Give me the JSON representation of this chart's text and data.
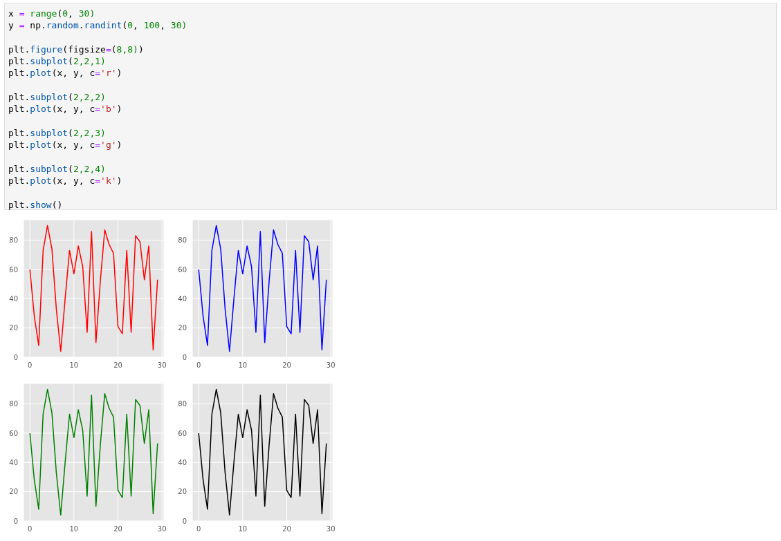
{
  "chart_data": [
    {
      "type": "other",
      "annotations": [
        "x = range(0, 30)\ny = np.random.randint(0, 100, 30)\n\nplt.figure(figsize=(8,8))\nplt.subplot(2,2,1)\nplt.plot(x, y, c='r')\n\nplt.subplot(2,2,2)\nplt.plot(x, y, c='b')\n\nplt.subplot(2,2,3)\nplt.plot(x, y, c='g')\n\nplt.subplot(2,2,4)\nplt.plot(x, y, c='k')\n\nplt.show()"
      ]
    },
    {
      "type": "line",
      "x": [
        0,
        1,
        2,
        3,
        4,
        5,
        6,
        7,
        8,
        9,
        10,
        11,
        12,
        13,
        14,
        15,
        16,
        17,
        18,
        19,
        20,
        21,
        22,
        23,
        24,
        25,
        26,
        27,
        28,
        29
      ],
      "series": [
        {
          "color": "#ff0000",
          "values": [
            60,
            28,
            8,
            73,
            90,
            74,
            33,
            4,
            40,
            73,
            57,
            76,
            62,
            17,
            86,
            10,
            52,
            87,
            77,
            71,
            21,
            16,
            73,
            17,
            83,
            79,
            53,
            76,
            5,
            53
          ]
        }
      ],
      "xlim": [
        -1.45,
        30.45
      ],
      "ylim": [
        0,
        94
      ],
      "xticks": [
        0,
        10,
        20,
        30
      ],
      "yticks": [
        0,
        20,
        40,
        60,
        80
      ],
      "grid": true
    },
    {
      "type": "line",
      "x": [
        0,
        1,
        2,
        3,
        4,
        5,
        6,
        7,
        8,
        9,
        10,
        11,
        12,
        13,
        14,
        15,
        16,
        17,
        18,
        19,
        20,
        21,
        22,
        23,
        24,
        25,
        26,
        27,
        28,
        29
      ],
      "series": [
        {
          "color": "#0000ff",
          "values": [
            60,
            28,
            8,
            73,
            90,
            74,
            33,
            4,
            40,
            73,
            57,
            76,
            62,
            17,
            86,
            10,
            52,
            87,
            77,
            71,
            21,
            16,
            73,
            17,
            83,
            79,
            53,
            76,
            5,
            53
          ]
        }
      ],
      "xlim": [
        -1.45,
        30.45
      ],
      "ylim": [
        0,
        94
      ],
      "xticks": [
        0,
        10,
        20,
        30
      ],
      "yticks": [
        0,
        20,
        40,
        60,
        80
      ],
      "grid": true
    },
    {
      "type": "line",
      "x": [
        0,
        1,
        2,
        3,
        4,
        5,
        6,
        7,
        8,
        9,
        10,
        11,
        12,
        13,
        14,
        15,
        16,
        17,
        18,
        19,
        20,
        21,
        22,
        23,
        24,
        25,
        26,
        27,
        28,
        29
      ],
      "series": [
        {
          "color": "#008000",
          "values": [
            60,
            28,
            8,
            73,
            90,
            74,
            33,
            4,
            40,
            73,
            57,
            76,
            62,
            17,
            86,
            10,
            52,
            87,
            77,
            71,
            21,
            16,
            73,
            17,
            83,
            79,
            53,
            76,
            5,
            53
          ]
        }
      ],
      "xlim": [
        -1.45,
        30.45
      ],
      "ylim": [
        0,
        94
      ],
      "xticks": [
        0,
        10,
        20,
        30
      ],
      "yticks": [
        0,
        20,
        40,
        60,
        80
      ],
      "grid": true
    },
    {
      "type": "line",
      "x": [
        0,
        1,
        2,
        3,
        4,
        5,
        6,
        7,
        8,
        9,
        10,
        11,
        12,
        13,
        14,
        15,
        16,
        17,
        18,
        19,
        20,
        21,
        22,
        23,
        24,
        25,
        26,
        27,
        28,
        29
      ],
      "series": [
        {
          "color": "#000000",
          "values": [
            60,
            28,
            8,
            73,
            90,
            74,
            33,
            4,
            40,
            73,
            57,
            76,
            62,
            17,
            86,
            10,
            52,
            87,
            77,
            71,
            21,
            16,
            73,
            17,
            83,
            79,
            53,
            76,
            5,
            53
          ]
        }
      ],
      "xlim": [
        -1.45,
        30.45
      ],
      "ylim": [
        0,
        94
      ],
      "xticks": [
        0,
        10,
        20,
        30
      ],
      "yticks": [
        0,
        20,
        40,
        60,
        80
      ],
      "grid": true
    }
  ]
}
